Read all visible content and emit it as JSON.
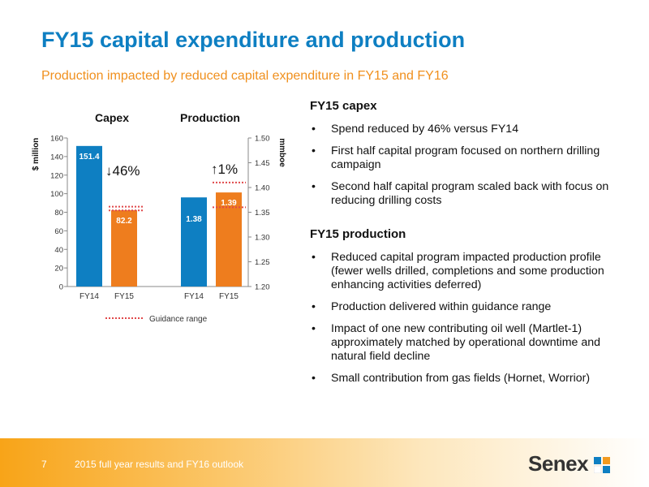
{
  "title": "FY15 capital expenditure and production",
  "subtitle": "Production impacted by reduced capital expenditure in FY15 and FY16",
  "chart_data": [
    {
      "type": "bar",
      "title": "Capex",
      "ylabel": "$ million",
      "ylim": [
        0,
        160
      ],
      "yticks": [
        "0",
        "20",
        "40",
        "60",
        "80",
        "100",
        "120",
        "140",
        "160"
      ],
      "categories": [
        "FY14",
        "FY15"
      ],
      "values": [
        151.4,
        82.2
      ],
      "value_labels": [
        "151.4",
        "82.2"
      ],
      "colors": [
        "#0e7fc2",
        "#ee7d1e"
      ],
      "guidance_range": [
        82,
        86
      ],
      "change_label": "↓46%"
    },
    {
      "type": "bar",
      "title": "Production",
      "ylabel": "mmboe",
      "ylim": [
        1.2,
        1.5
      ],
      "yticks": [
        "1.20",
        "1.25",
        "1.30",
        "1.35",
        "1.40",
        "1.45",
        "1.50"
      ],
      "categories": [
        "FY14",
        "FY15"
      ],
      "values": [
        1.38,
        1.39
      ],
      "value_labels": [
        "1.38",
        "1.39"
      ],
      "colors": [
        "#0e7fc2",
        "#ee7d1e"
      ],
      "guidance_range": [
        1.36,
        1.41
      ],
      "change_label": "↑1%"
    }
  ],
  "legend": {
    "guidance_label": "Guidance range",
    "guidance_color": "#e0494b"
  },
  "capex": {
    "heading": "FY15 capex",
    "bullets": [
      "Spend reduced by 46% versus FY14",
      "First half capital program focused on northern drilling campaign",
      "Second half capital program scaled back with focus on reducing drilling costs"
    ]
  },
  "production": {
    "heading": "FY15 production",
    "bullets": [
      "Reduced capital program impacted production profile (fewer wells drilled, completions and some production enhancing activities deferred)",
      "Production delivered within guidance range",
      "Impact of one new contributing oil well (Martlet-1) approximately matched by operational downtime and natural field decline",
      "Small contribution from gas fields (Hornet, Worrior)"
    ]
  },
  "footer": {
    "page_number": "7",
    "text": "2015 full year results and FY16 outlook",
    "logo": "Senex"
  }
}
